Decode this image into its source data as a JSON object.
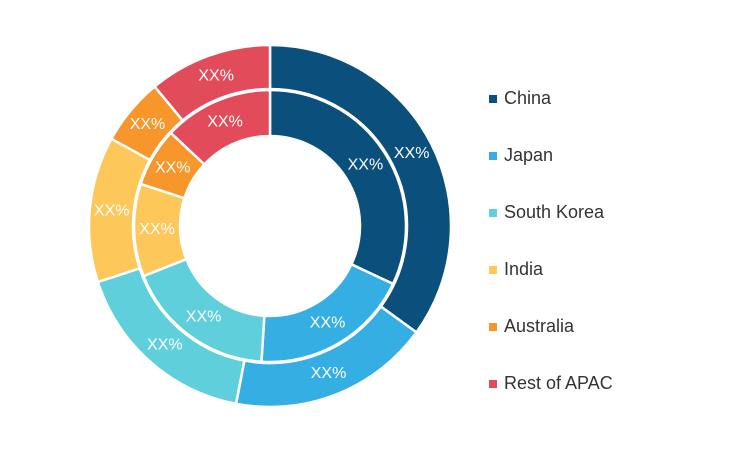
{
  "chart_data": {
    "type": "pie",
    "subtype": "double-donut",
    "categories": [
      "China",
      "Japan",
      "South Korea",
      "India",
      "Australia",
      "Rest of APAC"
    ],
    "colors": [
      "#0b4f7c",
      "#34aee3",
      "#5fd0db",
      "#fdc75a",
      "#f6962b",
      "#e14b5a"
    ],
    "series": [
      {
        "ring": "outer",
        "values": [
          35,
          18,
          17,
          13,
          6,
          11
        ],
        "labels": [
          "XX%",
          "XX%",
          "XX%",
          "XX%",
          "XX%",
          "XX%"
        ]
      },
      {
        "ring": "inner",
        "values": [
          32,
          19,
          18,
          11,
          7,
          13
        ],
        "labels": [
          "XX%",
          "XX%",
          "XX%",
          "XX%",
          "XX%",
          "XX%"
        ]
      }
    ],
    "legend_position": "right"
  },
  "legend": {
    "items": [
      "China",
      "Japan",
      "South Korea",
      "India",
      "Australia",
      "Rest of APAC"
    ]
  }
}
